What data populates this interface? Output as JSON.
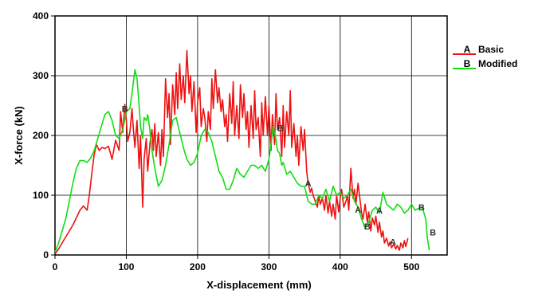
{
  "chart_data": {
    "type": "line",
    "title": "",
    "xlabel": "X-displacement (mm)",
    "ylabel": "X-force (kN)",
    "xlim": [
      0,
      550
    ],
    "ylim": [
      0,
      400
    ],
    "xticks": [
      0,
      100,
      200,
      300,
      400,
      500
    ],
    "yticks": [
      0,
      100,
      200,
      300,
      400
    ],
    "xtick_labels": [
      "0",
      "100",
      "200",
      "300",
      "400",
      "500"
    ],
    "ytick_labels": [
      "0",
      "100",
      "200",
      "300",
      "400"
    ],
    "grid": true,
    "legend_position": "right",
    "series": [
      {
        "name": "Basic",
        "marker": "A",
        "color": "#ee1111",
        "x": [
          0,
          5,
          10,
          15,
          20,
          25,
          30,
          35,
          40,
          45,
          48,
          52,
          55,
          58,
          62,
          66,
          70,
          75,
          80,
          85,
          90,
          92,
          95,
          98,
          100,
          102,
          105,
          108,
          110,
          112,
          115,
          118,
          120,
          123,
          125,
          128,
          130,
          133,
          136,
          138,
          140,
          142,
          145,
          148,
          150,
          152,
          155,
          158,
          160,
          162,
          165,
          168,
          170,
          172,
          175,
          177,
          180,
          182,
          185,
          188,
          190,
          192,
          195,
          198,
          200,
          203,
          205,
          208,
          210,
          213,
          215,
          218,
          220,
          222,
          225,
          228,
          230,
          233,
          235,
          238,
          240,
          242,
          245,
          248,
          250,
          252,
          255,
          258,
          260,
          263,
          265,
          268,
          270,
          272,
          275,
          278,
          280,
          282,
          285,
          288,
          290,
          292,
          295,
          298,
          300,
          303,
          305,
          308,
          310,
          312,
          315,
          318,
          320,
          322,
          325,
          328,
          330,
          332,
          335,
          338,
          340,
          342,
          345,
          348,
          350,
          353,
          355,
          358,
          360,
          362,
          365,
          368,
          370,
          372,
          375,
          378,
          380,
          383,
          385,
          388,
          390,
          393,
          395,
          398,
          400,
          402,
          405,
          408,
          410,
          412,
          415,
          418,
          420,
          422,
          425,
          428,
          430,
          432,
          435,
          438,
          440,
          443,
          445,
          448,
          450,
          453,
          455,
          458,
          460,
          462,
          465,
          468,
          470,
          472,
          475,
          478,
          480,
          483,
          485,
          488,
          490,
          492,
          495
        ],
        "y": [
          2,
          10,
          20,
          30,
          40,
          50,
          62,
          75,
          82,
          75,
          98,
          140,
          168,
          185,
          175,
          180,
          178,
          182,
          160,
          192,
          175,
          240,
          205,
          252,
          225,
          190,
          205,
          245,
          210,
          180,
          225,
          145,
          200,
          80,
          160,
          195,
          140,
          185,
          210,
          175,
          220,
          165,
          205,
          150,
          210,
          165,
          295,
          230,
          270,
          185,
          285,
          235,
          305,
          245,
          320,
          260,
          300,
          255,
          342,
          270,
          300,
          240,
          290,
          205,
          255,
          280,
          215,
          245,
          230,
          190,
          240,
          210,
          295,
          245,
          310,
          255,
          280,
          240,
          260,
          215,
          235,
          190,
          270,
          220,
          290,
          200,
          250,
          195,
          285,
          230,
          270,
          210,
          240,
          180,
          250,
          195,
          275,
          210,
          230,
          165,
          255,
          200,
          265,
          200,
          250,
          175,
          235,
          185,
          270,
          210,
          230,
          165,
          250,
          180,
          240,
          200,
          275,
          180,
          220,
          165,
          200,
          150,
          215,
          175,
          210,
          140,
          120,
          105,
          112,
          100,
          90,
          80,
          100,
          85,
          95,
          75,
          100,
          70,
          90,
          65,
          85,
          60,
          100,
          72,
          95,
          110,
          80,
          90,
          100,
          75,
          145,
          95,
          110,
          85,
          120,
          90,
          70,
          60,
          85,
          55,
          72,
          40,
          62,
          50,
          65,
          38,
          55,
          30,
          40,
          20,
          28,
          15,
          22,
          12,
          18,
          10,
          16,
          8,
          20,
          12,
          24,
          14,
          28
        ]
      },
      {
        "name": "Modified",
        "marker": "B",
        "color": "#11dd11",
        "x": [
          0,
          5,
          10,
          15,
          20,
          25,
          30,
          35,
          40,
          45,
          50,
          55,
          60,
          65,
          70,
          75,
          80,
          85,
          90,
          95,
          100,
          105,
          108,
          112,
          115,
          118,
          120,
          123,
          125,
          128,
          130,
          133,
          136,
          140,
          145,
          150,
          155,
          160,
          165,
          170,
          175,
          180,
          185,
          190,
          195,
          200,
          205,
          210,
          215,
          220,
          225,
          230,
          235,
          240,
          245,
          250,
          255,
          260,
          265,
          270,
          275,
          280,
          285,
          290,
          295,
          300,
          303,
          306,
          309,
          312,
          315,
          318,
          320,
          325,
          330,
          335,
          340,
          345,
          350,
          355,
          360,
          365,
          370,
          375,
          380,
          385,
          390,
          395,
          400,
          405,
          410,
          415,
          420,
          425,
          430,
          435,
          440,
          445,
          450,
          455,
          460,
          465,
          470,
          475,
          480,
          485,
          490,
          495,
          500,
          505,
          510,
          515,
          520,
          522,
          525
        ],
        "y": [
          5,
          20,
          40,
          60,
          90,
          120,
          145,
          158,
          158,
          155,
          162,
          175,
          195,
          215,
          235,
          240,
          225,
          200,
          195,
          210,
          240,
          245,
          270,
          310,
          295,
          250,
          215,
          195,
          230,
          225,
          235,
          210,
          175,
          145,
          115,
          125,
          150,
          185,
          225,
          230,
          205,
          180,
          160,
          150,
          155,
          170,
          200,
          210,
          205,
          190,
          165,
          140,
          130,
          110,
          110,
          125,
          145,
          135,
          130,
          140,
          150,
          150,
          145,
          150,
          140,
          160,
          185,
          215,
          200,
          175,
          170,
          150,
          155,
          135,
          140,
          130,
          120,
          115,
          115,
          90,
          85,
          85,
          100,
          95,
          110,
          90,
          115,
          100,
          105,
          95,
          100,
          110,
          90,
          80,
          60,
          45,
          55,
          75,
          80,
          70,
          105,
          85,
          80,
          75,
          85,
          80,
          70,
          75,
          85,
          75,
          78,
          80,
          60,
          30,
          8
        ]
      }
    ],
    "annotations": [
      {
        "text": "A",
        "x": 455,
        "y": 75
      },
      {
        "text": "A",
        "x": 355,
        "y": 120
      },
      {
        "text": "A",
        "x": 425,
        "y": 76
      },
      {
        "text": "A",
        "x": 474,
        "y": 22
      },
      {
        "text": "B",
        "x": 98,
        "y": 245
      },
      {
        "text": "B",
        "x": 316,
        "y": 213
      },
      {
        "text": "B",
        "x": 438,
        "y": 48
      },
      {
        "text": "B",
        "x": 514,
        "y": 80
      },
      {
        "text": "B",
        "x": 530,
        "y": 38
      }
    ]
  }
}
